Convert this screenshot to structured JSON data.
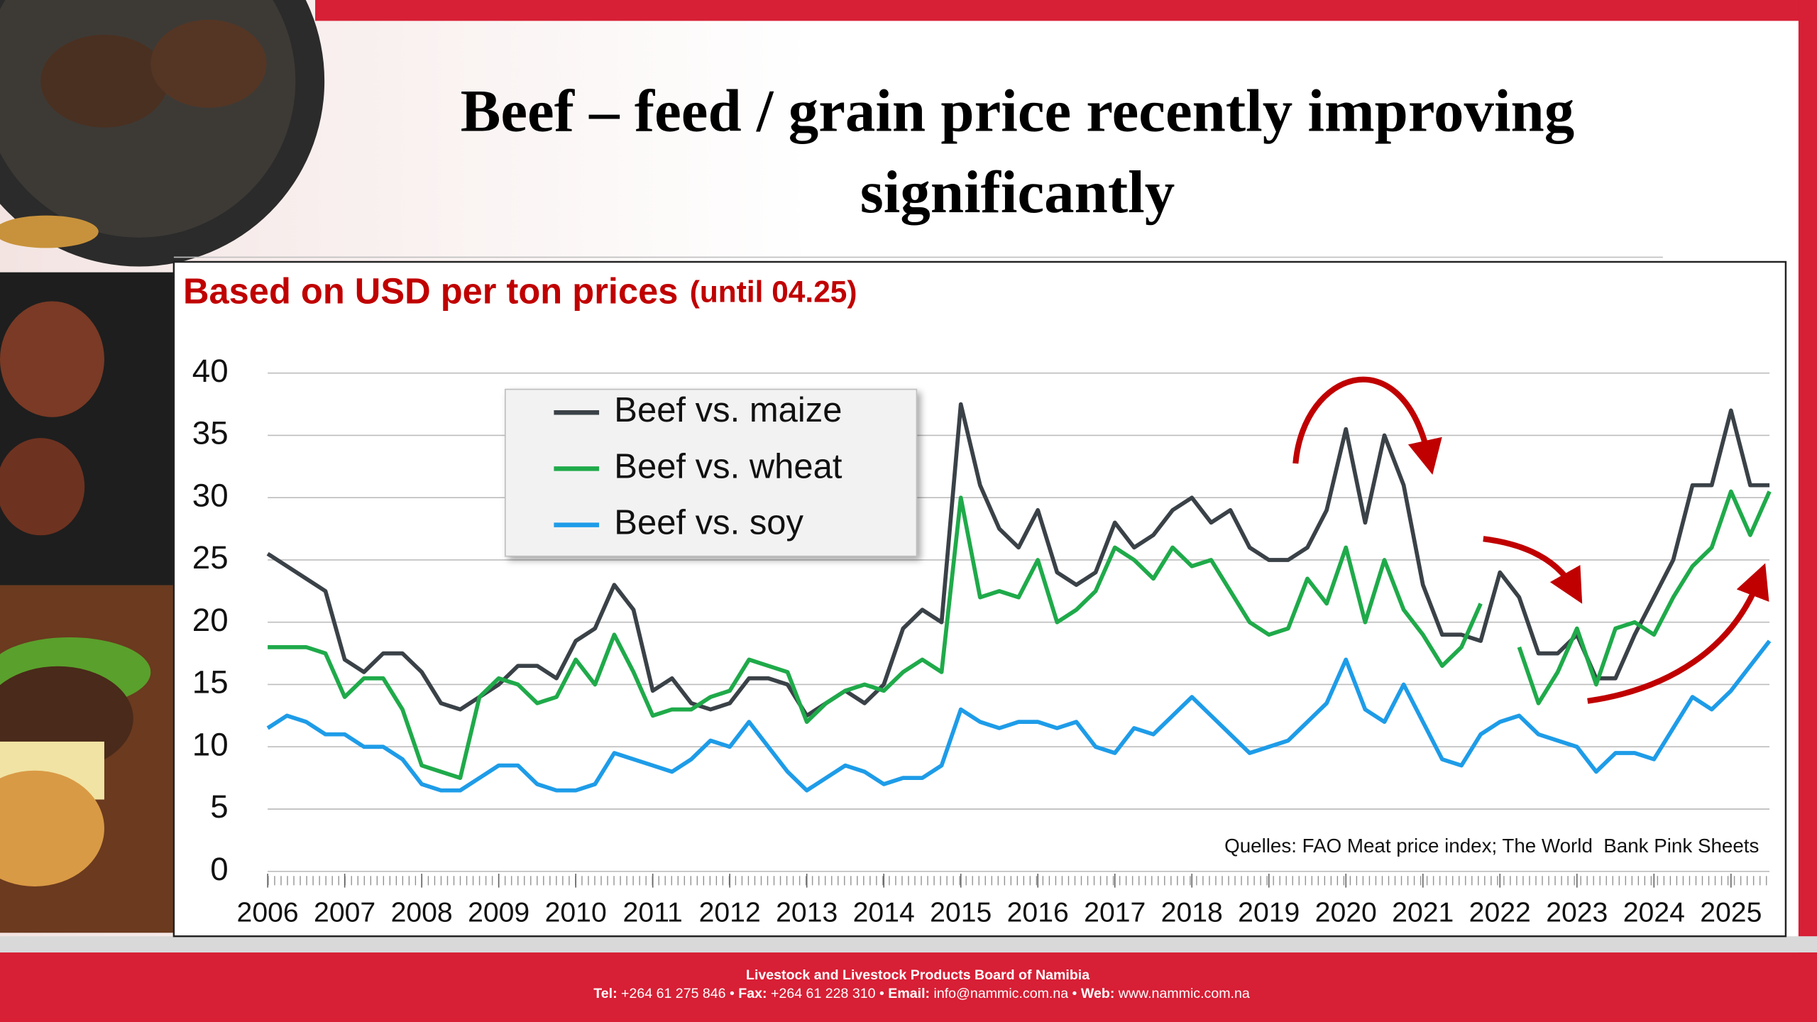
{
  "header": {
    "title": "Beef – feed / grain price recently improving significantly"
  },
  "chart_data": {
    "type": "line",
    "title": "Based on USD per ton prices",
    "subtitle": "(until 04.25)",
    "source": "Quelles: FAO Meat price index; The World  Bank Pink Sheets",
    "xlim": [
      2006,
      2025.5
    ],
    "xticks": [
      2006,
      2007,
      2008,
      2009,
      2010,
      2011,
      2012,
      2013,
      2014,
      2015,
      2016,
      2017,
      2018,
      2019,
      2020,
      2021,
      2022,
      2023,
      2024,
      2025
    ],
    "ylim": [
      0,
      40
    ],
    "yticks": [
      0,
      5,
      10,
      15,
      20,
      25,
      30,
      35,
      40
    ],
    "grid": true,
    "legend": "upper left",
    "x": [
      2006,
      2006.25,
      2006.5,
      2006.75,
      2007,
      2007.25,
      2007.5,
      2007.75,
      2008,
      2008.25,
      2008.5,
      2008.75,
      2009,
      2009.25,
      2009.5,
      2009.75,
      2010,
      2010.25,
      2010.5,
      2010.75,
      2011,
      2011.25,
      2011.5,
      2011.75,
      2012,
      2012.25,
      2012.5,
      2012.75,
      2013,
      2013.25,
      2013.5,
      2013.75,
      2014,
      2014.25,
      2014.5,
      2014.75,
      2015,
      2015.25,
      2015.5,
      2015.75,
      2016,
      2016.25,
      2016.5,
      2016.75,
      2017,
      2017.25,
      2017.5,
      2017.75,
      2018,
      2018.25,
      2018.5,
      2018.75,
      2019,
      2019.25,
      2019.5,
      2019.75,
      2020,
      2020.25,
      2020.5,
      2020.75,
      2021,
      2021.25,
      2021.5,
      2021.75,
      2022,
      2022.25,
      2022.5,
      2022.75,
      2023,
      2023.25,
      2023.5,
      2023.75,
      2024,
      2024.25,
      2024.5,
      2024.75,
      2025,
      2025.25,
      2025.5
    ],
    "series": [
      {
        "name": "Beef vs. maize",
        "color": "#3a4248",
        "values": [
          25.5,
          24.5,
          23.5,
          22.5,
          17,
          16,
          17.5,
          17.5,
          16,
          13.5,
          13,
          14,
          15,
          16.5,
          16.5,
          15.5,
          18.5,
          19.5,
          23,
          21,
          14.5,
          15.5,
          13.5,
          13,
          13.5,
          15.5,
          15.5,
          15,
          12.5,
          13.5,
          14.5,
          13.5,
          15,
          19.5,
          21,
          20,
          37.5,
          31,
          27.5,
          26,
          29,
          24,
          23,
          24,
          28,
          26,
          27,
          29,
          30,
          28,
          29,
          26,
          25,
          25,
          26,
          29,
          35.5,
          28,
          35,
          31,
          23,
          19,
          19,
          18.5,
          24,
          22,
          17.5,
          17.5,
          19,
          15.5,
          15.5,
          19,
          22,
          25,
          31,
          31,
          37,
          31,
          31
        ]
      },
      {
        "name": "Beef vs. wheat",
        "color": "#1faa4a",
        "values": [
          18,
          18,
          18,
          17.5,
          14,
          15.5,
          15.5,
          13,
          8.5,
          8,
          7.5,
          14,
          15.5,
          15,
          13.5,
          14,
          17,
          15,
          19,
          16,
          12.5,
          13,
          13,
          14,
          14.5,
          17,
          16.5,
          16,
          12,
          13.5,
          14.5,
          15,
          14.5,
          16,
          17,
          16,
          30,
          22,
          22.5,
          22,
          25,
          20,
          21,
          22.5,
          26,
          25,
          23.5,
          26,
          24.5,
          25,
          22.5,
          20,
          19,
          19.5,
          23.5,
          21.5,
          26,
          20,
          25,
          21,
          19,
          16.5,
          18,
          21.5,
          null,
          18,
          13.5,
          16,
          19.5,
          15,
          19.5,
          20,
          19,
          22,
          24.5,
          26,
          30.5,
          27,
          30.5
        ]
      },
      {
        "name": "Beef vs. soy",
        "color": "#1e9ce8",
        "values": [
          11.5,
          12.5,
          12,
          11,
          11,
          10,
          10,
          9,
          7,
          6.5,
          6.5,
          7.5,
          8.5,
          8.5,
          7,
          6.5,
          6.5,
          7,
          9.5,
          9,
          8.5,
          8,
          9,
          10.5,
          10,
          12,
          10,
          8,
          6.5,
          7.5,
          8.5,
          8,
          7,
          7.5,
          7.5,
          8.5,
          13,
          12,
          11.5,
          12,
          12,
          11.5,
          12,
          10,
          9.5,
          11.5,
          11,
          12.5,
          14,
          12.5,
          11,
          9.5,
          10,
          10.5,
          12,
          13.5,
          17,
          13,
          12,
          15,
          12,
          9,
          8.5,
          11,
          12,
          12.5,
          11,
          10.5,
          10,
          8,
          9.5,
          9.5,
          9,
          11.5,
          14,
          13,
          14.5,
          16.5,
          18.5
        ]
      }
    ]
  },
  "footer": {
    "organisation": "Livestock and Livestock Products Board of Namibia",
    "contacts": [
      {
        "label": "Tel:",
        "value": " +264 61 275 846 • "
      },
      {
        "label": "Fax:",
        "value": " +264 61 228 310 • "
      },
      {
        "label": "Email:",
        "value": " info@nammic.com.na • "
      },
      {
        "label": "Web:",
        "value": " www.nammic.com.na"
      }
    ]
  }
}
